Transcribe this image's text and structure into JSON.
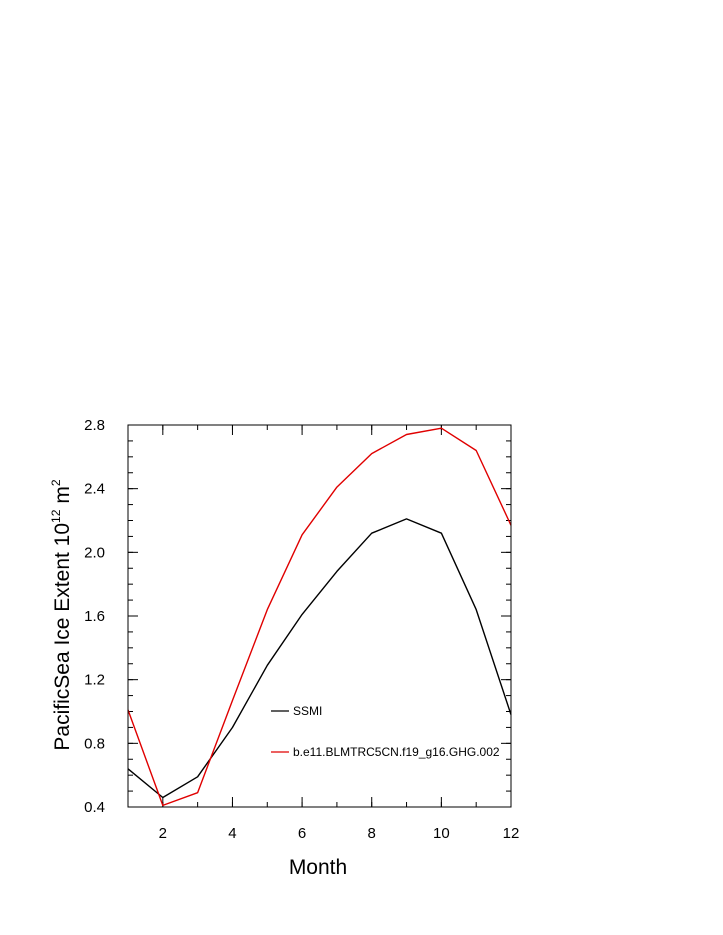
{
  "chart_data": {
    "type": "line",
    "title": "",
    "xlabel": "Month",
    "ylabel": {
      "prefix": "PacificSea Ice Extent 10",
      "exponent": "12",
      "unit": "m",
      "unit_exponent": "2"
    },
    "xlim": [
      1,
      12
    ],
    "ylim": [
      0.4,
      2.8
    ],
    "xticks": [
      2,
      4,
      6,
      8,
      10,
      12
    ],
    "xtick_labels": [
      "2",
      "4",
      "6",
      "8",
      "10",
      "12"
    ],
    "yticks": [
      0.4,
      0.8,
      1.2,
      1.6,
      2.0,
      2.4,
      2.8
    ],
    "ytick_labels": [
      "0.4",
      "0.8",
      "1.2",
      "1.6",
      "2.0",
      "2.4",
      "2.8"
    ],
    "grid": false,
    "legend_position": "inside-lower-center",
    "x": [
      1,
      2,
      3,
      4,
      5,
      6,
      7,
      8,
      9,
      10,
      11,
      12
    ],
    "series": [
      {
        "name": "SSMI",
        "color": "#000000",
        "values": [
          0.64,
          0.46,
          0.59,
          0.9,
          1.29,
          1.61,
          1.88,
          2.12,
          2.21,
          2.12,
          1.64,
          0.98
        ]
      },
      {
        "name": "b.e11.BLMTRC5CN.f19_g16.GHG.002",
        "color": "#e00000",
        "values": [
          1.01,
          0.41,
          0.49,
          1.07,
          1.64,
          2.11,
          2.41,
          2.62,
          2.74,
          2.78,
          2.64,
          2.17
        ]
      }
    ]
  }
}
